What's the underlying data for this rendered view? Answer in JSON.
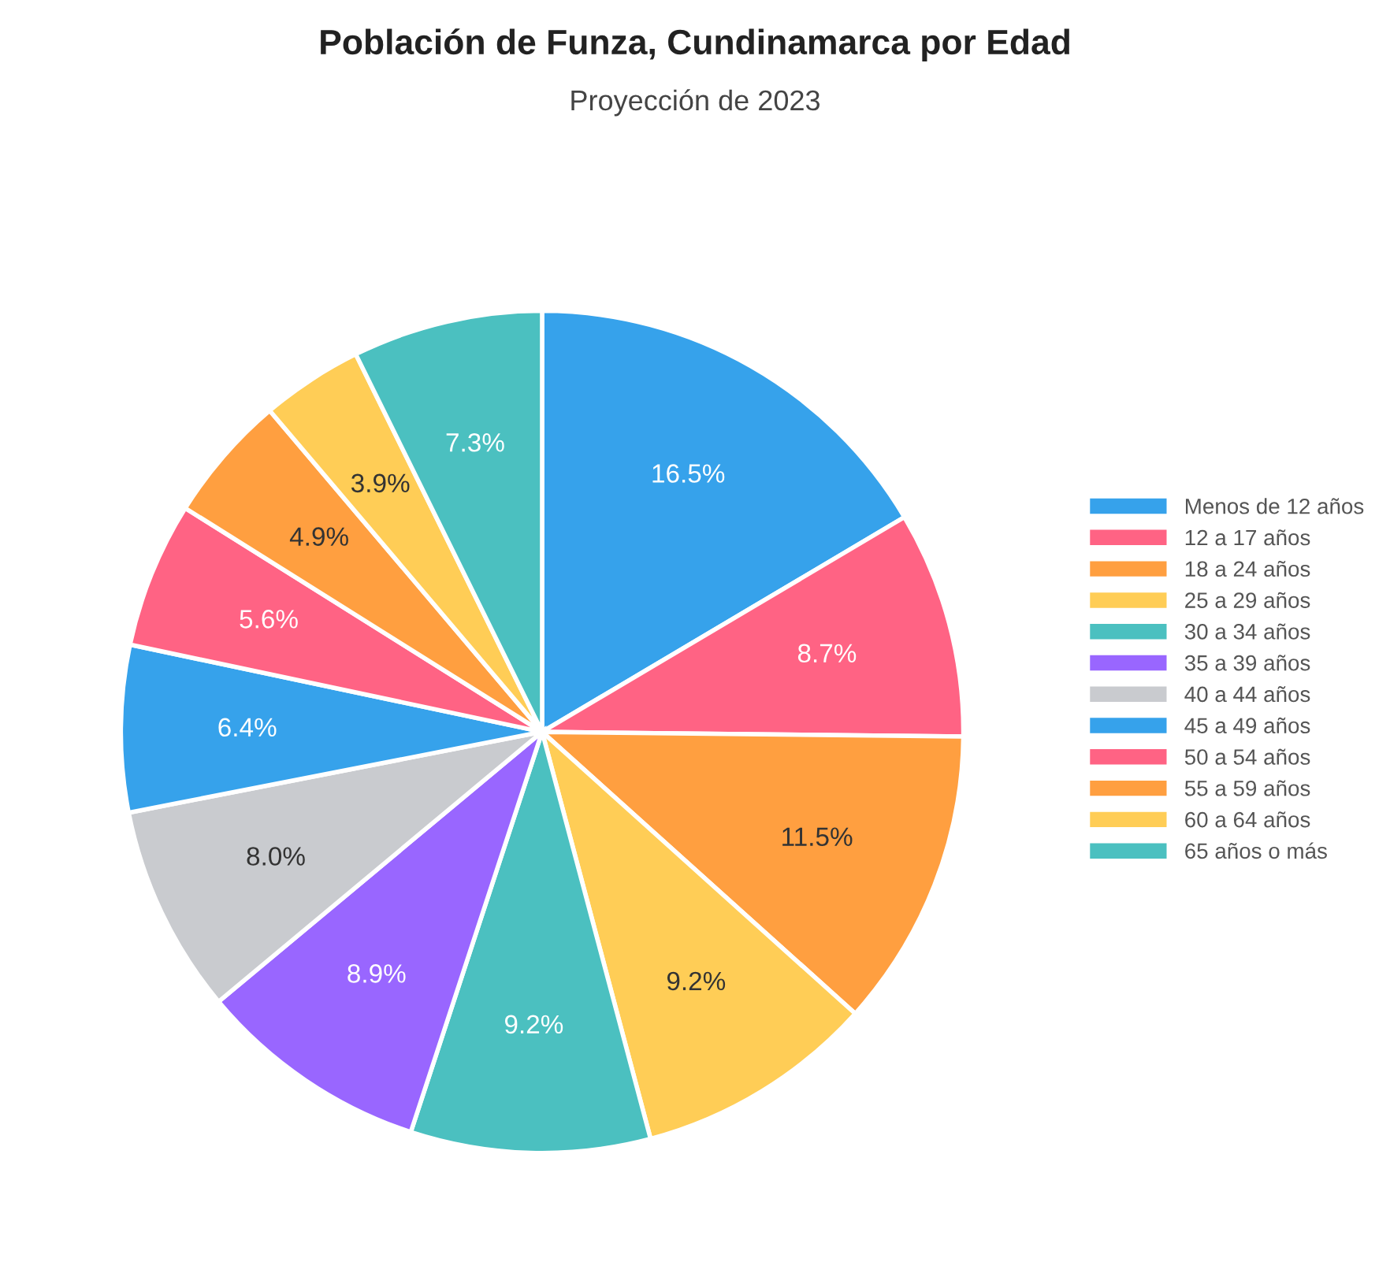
{
  "chart_data": {
    "type": "pie",
    "title": "Población de Funza, Cundinamarca por Edad",
    "subtitle": "Proyección de 2023",
    "categories": [
      "Menos de 12 años",
      "12 a 17 años",
      "18 a 24 años",
      "25 a 29 años",
      "30 a 34 años",
      "35 a 39 años",
      "40 a 44 años",
      "45 a 49 años",
      "50 a 54 años",
      "55 a 59 años",
      "60 a 64 años",
      "65 años o más"
    ],
    "values": [
      16.5,
      8.7,
      11.5,
      9.2,
      9.2,
      8.9,
      8.0,
      6.4,
      5.6,
      4.9,
      3.9,
      7.3
    ],
    "colors": [
      "#36a2eb",
      "#ff6384",
      "#ff9f40",
      "#ffcd56",
      "#4bc0c0",
      "#9966ff",
      "#c9cbcf",
      "#36a2eb",
      "#ff6384",
      "#ff9f40",
      "#ffcd56",
      "#4bc0c0"
    ],
    "value_labels": [
      "16.5%",
      "8.7%",
      "11.5%",
      "9.2%",
      "9.2%",
      "8.9%",
      "8.0%",
      "6.4%",
      "5.6%",
      "4.9%",
      "3.9%",
      "7.3%"
    ],
    "legend": "right"
  }
}
